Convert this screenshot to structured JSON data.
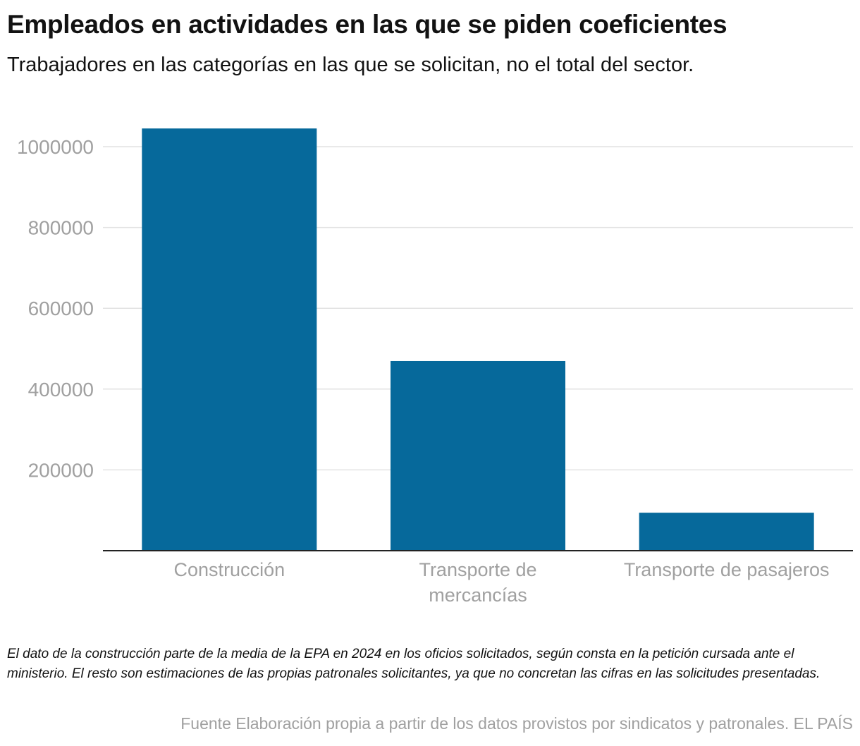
{
  "chart_data": {
    "type": "bar",
    "title": "Empleados en actividades en las que se piden coeficientes",
    "subtitle": "Trabajadores en las categorías en las que se solicitan, no el total del sector.",
    "categories": [
      [
        "Construcción"
      ],
      [
        "Transporte de",
        "mercancías"
      ],
      [
        "Transporte de pasajeros"
      ]
    ],
    "values": [
      1045000,
      469500,
      94000
    ],
    "ylim": [
      0,
      1000000
    ],
    "yticks": [
      "200000",
      "400000",
      "600000",
      "800000",
      "1000000"
    ],
    "grid": true,
    "bar_color": "#06699b",
    "note": "El dato de la construcción parte de la media de la EPA en 2024 en los oficios solicitados, según consta en la petición cursada ante el ministerio. El resto son estimaciones de las propias patronales solicitantes, ya que no concretan las cifras en las solicitudes presentadas.",
    "source": "Fuente Elaboración propia a partir de los datos provistos por sindicatos y patronales. EL PAÍS"
  }
}
